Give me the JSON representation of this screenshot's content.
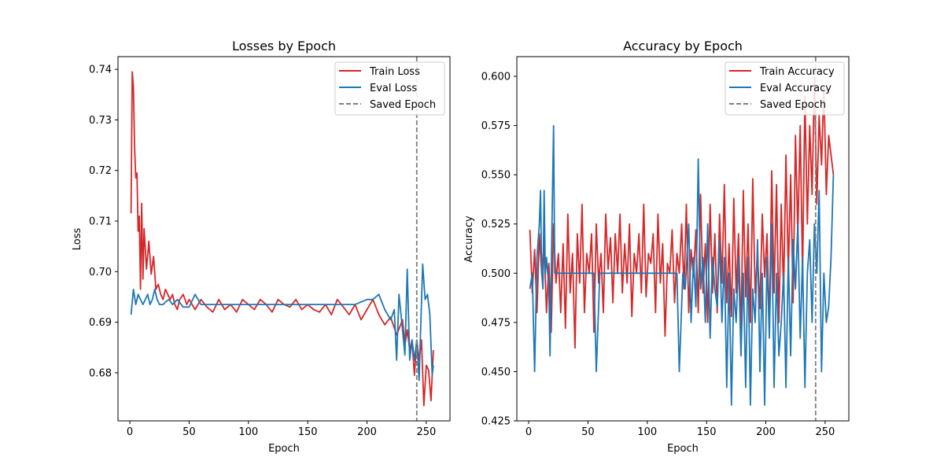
{
  "figure": {
    "background": "#ffffff"
  },
  "chart_data": [
    {
      "type": "line",
      "title": "Losses by Epoch",
      "xlabel": "Epoch",
      "ylabel": "Loss",
      "xlim": [
        -10,
        270
      ],
      "ylim": [
        0.6705,
        0.7425
      ],
      "xticks": [
        0,
        50,
        100,
        150,
        200,
        250
      ],
      "yticks": [
        0.68,
        0.69,
        0.7,
        0.71,
        0.72,
        0.73,
        0.74
      ],
      "ytick_labels": [
        "0.68",
        "0.69",
        "0.70",
        "0.71",
        "0.72",
        "0.73",
        "0.74"
      ],
      "grid": false,
      "legend_position": "top-right",
      "saved_epoch": 242,
      "series": [
        {
          "name": "Train Loss",
          "color": "#d62728",
          "x": [
            1,
            2,
            3,
            4,
            5,
            6,
            7,
            8,
            9,
            10,
            11,
            12,
            14,
            16,
            18,
            20,
            22,
            24,
            26,
            28,
            30,
            32,
            34,
            36,
            38,
            40,
            42,
            45,
            48,
            50,
            55,
            60,
            65,
            70,
            75,
            80,
            85,
            90,
            95,
            100,
            105,
            110,
            115,
            120,
            125,
            130,
            135,
            140,
            145,
            150,
            155,
            160,
            165,
            170,
            175,
            180,
            185,
            190,
            195,
            200,
            205,
            210,
            215,
            220,
            225,
            230,
            232,
            234,
            236,
            238,
            240,
            242,
            244,
            246,
            248,
            250,
            252,
            254,
            256
          ],
          "y": [
            0.7115,
            0.7395,
            0.7365,
            0.7245,
            0.7185,
            0.7195,
            0.708,
            0.711,
            0.6965,
            0.7135,
            0.6985,
            0.7085,
            0.7005,
            0.706,
            0.6995,
            0.703,
            0.6965,
            0.6975,
            0.6955,
            0.6945,
            0.6965,
            0.6955,
            0.6945,
            0.6955,
            0.6935,
            0.6925,
            0.6945,
            0.6955,
            0.6935,
            0.6945,
            0.6925,
            0.6945,
            0.693,
            0.692,
            0.6945,
            0.6925,
            0.6935,
            0.692,
            0.6945,
            0.6935,
            0.6925,
            0.6945,
            0.6935,
            0.692,
            0.6945,
            0.6935,
            0.693,
            0.6945,
            0.6925,
            0.6935,
            0.6925,
            0.692,
            0.6935,
            0.6915,
            0.6945,
            0.693,
            0.6915,
            0.6935,
            0.6905,
            0.6925,
            0.6945,
            0.6915,
            0.6895,
            0.691,
            0.6875,
            0.6905,
            0.6855,
            0.6885,
            0.6845,
            0.6865,
            0.6795,
            0.6865,
            0.6825,
            0.6865,
            0.6735,
            0.6815,
            0.6805,
            0.6745,
            0.6845
          ]
        },
        {
          "name": "Eval Loss",
          "color": "#1f77b4",
          "x": [
            1,
            3,
            5,
            7,
            9,
            11,
            13,
            15,
            17,
            19,
            21,
            23,
            25,
            28,
            30,
            33,
            36,
            40,
            45,
            50,
            55,
            60,
            70,
            80,
            90,
            100,
            110,
            120,
            130,
            140,
            150,
            160,
            170,
            180,
            190,
            200,
            205,
            210,
            215,
            220,
            223,
            225,
            227,
            230,
            232,
            234,
            236,
            238,
            240,
            242,
            244,
            245,
            247,
            249,
            251,
            253,
            255,
            256
          ],
          "y": [
            0.6915,
            0.6965,
            0.6935,
            0.6955,
            0.6945,
            0.6935,
            0.6945,
            0.6955,
            0.6935,
            0.6945,
            0.6965,
            0.6945,
            0.6935,
            0.6935,
            0.694,
            0.6945,
            0.6935,
            0.6945,
            0.693,
            0.693,
            0.6955,
            0.6935,
            0.6935,
            0.6935,
            0.6935,
            0.6935,
            0.6935,
            0.6935,
            0.6935,
            0.6935,
            0.6935,
            0.6935,
            0.6935,
            0.6935,
            0.6935,
            0.6945,
            0.6945,
            0.6955,
            0.6925,
            0.6905,
            0.6925,
            0.6825,
            0.6955,
            0.6885,
            0.6835,
            0.7005,
            0.6825,
            0.6865,
            0.6825,
            0.6865,
            0.6785,
            0.6865,
            0.7015,
            0.6945,
            0.6955,
            0.6915,
            0.6795,
            0.6815
          ]
        }
      ]
    },
    {
      "type": "line",
      "title": "Accuracy by Epoch",
      "xlabel": "Epoch",
      "ylabel": "Accuracy",
      "xlim": [
        -10,
        270
      ],
      "ylim": [
        0.425,
        0.61
      ],
      "xticks": [
        0,
        50,
        100,
        150,
        200,
        250
      ],
      "yticks": [
        0.425,
        0.45,
        0.475,
        0.5,
        0.525,
        0.55,
        0.575,
        0.6
      ],
      "ytick_labels": [
        "0.425",
        "0.450",
        "0.475",
        "0.500",
        "0.525",
        "0.550",
        "0.575",
        "0.600"
      ],
      "grid": false,
      "legend_position": "top-right",
      "saved_epoch": 242,
      "series": [
        {
          "name": "Train Accuracy",
          "color": "#d62728",
          "x": [
            1,
            3,
            5,
            7,
            9,
            11,
            13,
            15,
            17,
            19,
            21,
            23,
            25,
            27,
            29,
            31,
            33,
            35,
            37,
            39,
            41,
            43,
            45,
            47,
            49,
            51,
            53,
            55,
            57,
            59,
            61,
            63,
            65,
            67,
            69,
            71,
            73,
            75,
            77,
            79,
            81,
            83,
            85,
            87,
            89,
            91,
            93,
            95,
            97,
            99,
            101,
            103,
            105,
            107,
            109,
            111,
            113,
            115,
            117,
            119,
            121,
            123,
            125,
            127,
            129,
            131,
            133,
            135,
            137,
            139,
            141,
            143,
            145,
            147,
            149,
            151,
            153,
            155,
            157,
            159,
            161,
            163,
            165,
            167,
            169,
            171,
            173,
            175,
            177,
            179,
            181,
            183,
            185,
            187,
            189,
            191,
            193,
            195,
            197,
            199,
            201,
            203,
            205,
            207,
            209,
            211,
            213,
            215,
            217,
            219,
            221,
            223,
            225,
            227,
            229,
            231,
            233,
            235,
            237,
            239,
            241,
            243,
            245,
            247,
            249,
            251,
            253,
            255,
            257
          ],
          "y": [
            0.522,
            0.49,
            0.512,
            0.48,
            0.52,
            0.5,
            0.515,
            0.48,
            0.505,
            0.47,
            0.525,
            0.495,
            0.51,
            0.48,
            0.515,
            0.472,
            0.53,
            0.49,
            0.51,
            0.462,
            0.52,
            0.495,
            0.535,
            0.48,
            0.51,
            0.5,
            0.52,
            0.47,
            0.525,
            0.495,
            0.51,
            0.48,
            0.53,
            0.502,
            0.518,
            0.485,
            0.52,
            0.5,
            0.53,
            0.49,
            0.515,
            0.495,
            0.525,
            0.478,
            0.51,
            0.5,
            0.52,
            0.49,
            0.535,
            0.488,
            0.51,
            0.505,
            0.52,
            0.48,
            0.53,
            0.495,
            0.515,
            0.468,
            0.505,
            0.5,
            0.522,
            0.485,
            0.51,
            0.5,
            0.525,
            0.492,
            0.535,
            0.48,
            0.512,
            0.498,
            0.522,
            0.48,
            0.54,
            0.49,
            0.515,
            0.475,
            0.535,
            0.49,
            0.52,
            0.48,
            0.53,
            0.495,
            0.545,
            0.485,
            0.515,
            0.478,
            0.538,
            0.49,
            0.52,
            0.47,
            0.542,
            0.488,
            0.525,
            0.475,
            0.548,
            0.49,
            0.51,
            0.482,
            0.53,
            0.498,
            0.52,
            0.472,
            0.552,
            0.49,
            0.545,
            0.475,
            0.535,
            0.49,
            0.56,
            0.5,
            0.55,
            0.485,
            0.57,
            0.52,
            0.575,
            0.5,
            0.59,
            0.525,
            0.575,
            0.54,
            0.6,
            0.535,
            0.58,
            0.555,
            0.595,
            0.54,
            0.57,
            0.56,
            0.55
          ]
        },
        {
          "name": "Eval Accuracy",
          "color": "#1f77b4",
          "x": [
            1,
            3,
            5,
            7,
            9,
            10,
            11,
            12,
            13,
            14,
            15,
            17,
            18,
            19,
            21,
            22,
            23,
            24,
            25,
            27,
            30,
            33,
            35,
            37,
            40,
            45,
            50,
            55,
            57,
            60,
            70,
            80,
            90,
            100,
            110,
            120,
            125,
            127,
            130,
            132,
            135,
            137,
            139,
            141,
            143,
            145,
            147,
            149,
            151,
            153,
            155,
            157,
            159,
            161,
            163,
            165,
            167,
            169,
            171,
            173,
            175,
            177,
            179,
            181,
            183,
            185,
            187,
            189,
            191,
            193,
            195,
            197,
            199,
            201,
            203,
            205,
            207,
            209,
            211,
            213,
            215,
            217,
            219,
            221,
            223,
            225,
            227,
            229,
            231,
            233,
            235,
            237,
            239,
            241,
            243,
            245,
            247,
            249,
            251,
            253,
            255,
            257
          ],
          "y": [
            0.492,
            0.5,
            0.45,
            0.508,
            0.525,
            0.542,
            0.5,
            0.492,
            0.542,
            0.5,
            0.508,
            0.492,
            0.458,
            0.5,
            0.575,
            0.5,
            0.5,
            0.5,
            0.5,
            0.5,
            0.5,
            0.5,
            0.5,
            0.5,
            0.5,
            0.5,
            0.5,
            0.5,
            0.45,
            0.5,
            0.5,
            0.5,
            0.5,
            0.5,
            0.5,
            0.5,
            0.5,
            0.45,
            0.5,
            0.492,
            0.525,
            0.475,
            0.508,
            0.483,
            0.558,
            0.492,
            0.508,
            0.475,
            0.525,
            0.467,
            0.508,
            0.492,
            0.483,
            0.517,
            0.475,
            0.508,
            0.442,
            0.5,
            0.433,
            0.492,
            0.475,
            0.508,
            0.458,
            0.5,
            0.442,
            0.508,
            0.433,
            0.492,
            0.475,
            0.517,
            0.45,
            0.5,
            0.433,
            0.508,
            0.467,
            0.525,
            0.442,
            0.5,
            0.458,
            0.475,
            0.5,
            0.442,
            0.508,
            0.458,
            0.517,
            0.492,
            0.525,
            0.467,
            0.508,
            0.442,
            0.5,
            0.517,
            0.475,
            0.525,
            0.5,
            0.542,
            0.45,
            0.5,
            0.475,
            0.483,
            0.508,
            0.55
          ]
        }
      ]
    }
  ]
}
